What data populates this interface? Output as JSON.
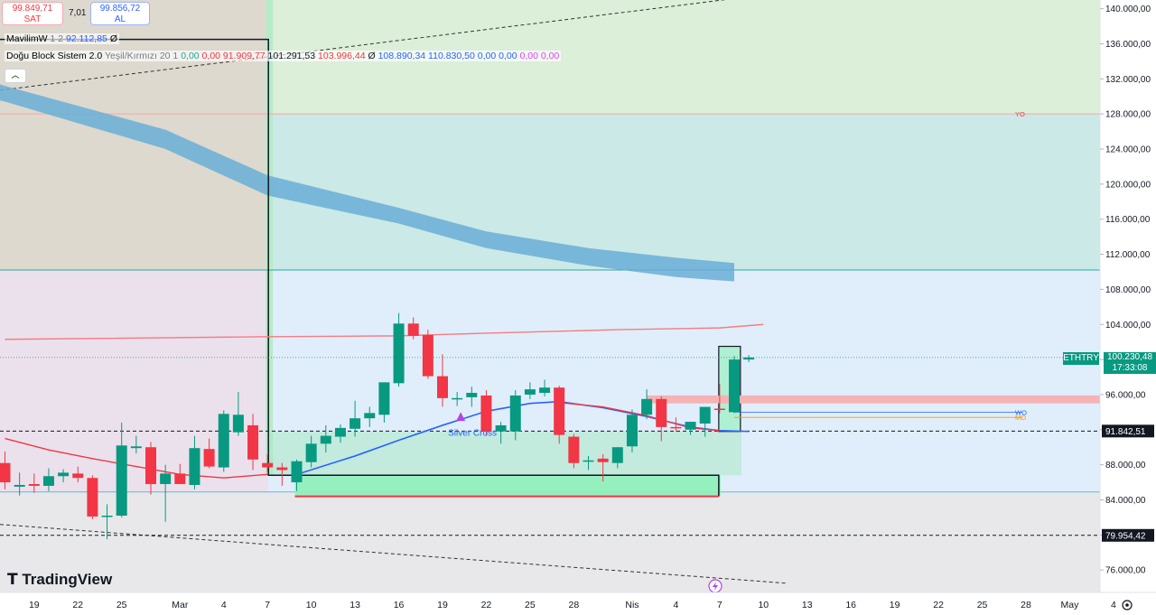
{
  "trade": {
    "sell_price": "99.849,71",
    "sell_label": "SAT",
    "spread": "7,01",
    "buy_price": "99.856,72",
    "buy_label": "AL"
  },
  "legend": {
    "indicator1_name": "MavilimW",
    "indicator1_params": "1 2",
    "indicator1_value": "92.112,85",
    "indicator1_empty": "Ø",
    "indicator2_name": "Doğu Block Sistem 2.0",
    "indicator2_params": "Yeşil/Kırmızı 20 1",
    "indicator2_values": [
      {
        "text": "0,00",
        "color": "#26a69a"
      },
      {
        "text": "0,00",
        "color": "#f23645"
      },
      {
        "text": "91.909,77",
        "color": "#f23645"
      },
      {
        "text": "101.291,53",
        "color": "#131722"
      },
      {
        "text": "103.996,44",
        "color": "#f23645"
      },
      {
        "text": "Ø",
        "color": "#131722"
      },
      {
        "text": "108.890,34",
        "color": "#2962ff"
      },
      {
        "text": "110.830,50",
        "color": "#2962ff"
      },
      {
        "text": "0,00",
        "color": "#2962ff"
      },
      {
        "text": "0,00",
        "color": "#2962ff"
      },
      {
        "text": "0,00",
        "color": "#e040fb"
      },
      {
        "text": "0,00",
        "color": "#e040fb"
      }
    ],
    "collapse_icon": "chevron-up-icon"
  },
  "symbol_tag": {
    "symbol": "ETHTRY",
    "price": "100.230,48",
    "countdown": "17:33:08",
    "color": "#26a69a"
  },
  "level_tags": [
    {
      "price": 91842.51,
      "label": "91.842,51"
    },
    {
      "price": 79954.42,
      "label": "79.954,42"
    }
  ],
  "zone_labels": [
    {
      "text": "YO",
      "price": 128000
    },
    {
      "text": "WO",
      "price": 94000
    },
    {
      "text": "MO",
      "price": 93400
    }
  ],
  "annotations": [
    {
      "text": "Silver Cross",
      "x": "20 Mar",
      "price": 91600
    }
  ],
  "branding": {
    "logo_text": "TradingView"
  },
  "colors": {
    "up": "#089981",
    "down": "#f23645",
    "ma": "#2962ff",
    "band": "#6aaed6",
    "upper_band": "#f77c80"
  },
  "chart_data": {
    "type": "candlestick",
    "symbol": "ETHTRY",
    "x_tick_labels": [
      "19",
      "22",
      "25",
      "Mar",
      "4",
      "7",
      "10",
      "13",
      "16",
      "19",
      "22",
      "25",
      "28",
      "Nis",
      "4",
      "7",
      "10",
      "13",
      "16",
      "19",
      "22",
      "25",
      "28",
      "May",
      "4"
    ],
    "y_tick_labels": [
      "76.000,00",
      "80.000,00",
      "84.000,00",
      "88.000,00",
      "92.000,00",
      "96.000,00",
      "100.000,00",
      "104.000,00",
      "108.000,00",
      "112.000,00",
      "116.000,00",
      "120.000,00",
      "124.000,00",
      "128.000,00",
      "132.000,00",
      "136.000,00",
      "140.000,00"
    ],
    "ylim": [
      74500,
      140700
    ],
    "candles": [
      {
        "date": "17 Feb",
        "o": 88200,
        "h": 89500,
        "l": 85200,
        "c": 86000
      },
      {
        "date": "18 Feb",
        "o": 85500,
        "h": 87100,
        "l": 84500,
        "c": 85700
      },
      {
        "date": "19 Feb",
        "o": 85800,
        "h": 87000,
        "l": 84800,
        "c": 85600
      },
      {
        "date": "20 Feb",
        "o": 85600,
        "h": 87600,
        "l": 85000,
        "c": 86700
      },
      {
        "date": "21 Feb",
        "o": 86700,
        "h": 87500,
        "l": 86000,
        "c": 87100
      },
      {
        "date": "22 Feb",
        "o": 87000,
        "h": 87800,
        "l": 86000,
        "c": 86500
      },
      {
        "date": "23 Feb",
        "o": 86500,
        "h": 86800,
        "l": 81800,
        "c": 82100
      },
      {
        "date": "24 Feb",
        "o": 82100,
        "h": 83500,
        "l": 79500,
        "c": 82200
      },
      {
        "date": "25 Feb",
        "o": 82200,
        "h": 92800,
        "l": 82000,
        "c": 90200
      },
      {
        "date": "26 Feb",
        "o": 89900,
        "h": 91300,
        "l": 89300,
        "c": 90100
      },
      {
        "date": "27 Feb",
        "o": 90000,
        "h": 90600,
        "l": 84600,
        "c": 85800
      },
      {
        "date": "28 Feb",
        "o": 85800,
        "h": 88000,
        "l": 81500,
        "c": 87000
      },
      {
        "date": "1 Mar",
        "o": 87000,
        "h": 88100,
        "l": 85800,
        "c": 85800
      },
      {
        "date": "2 Mar",
        "o": 85700,
        "h": 91300,
        "l": 85200,
        "c": 89900
      },
      {
        "date": "3 Mar",
        "o": 89800,
        "h": 91000,
        "l": 87600,
        "c": 87800
      },
      {
        "date": "4 Mar",
        "o": 87700,
        "h": 94200,
        "l": 87200,
        "c": 93800
      },
      {
        "date": "5 Mar",
        "o": 91700,
        "h": 96300,
        "l": 91300,
        "c": 93700
      },
      {
        "date": "6 Mar",
        "o": 92500,
        "h": 93800,
        "l": 87400,
        "c": 88600
      },
      {
        "date": "7 Mar",
        "o": 88200,
        "h": 89200,
        "l": 87100,
        "c": 87700
      },
      {
        "date": "8 Mar",
        "o": 87700,
        "h": 88200,
        "l": 85600,
        "c": 87400
      },
      {
        "date": "9 Mar",
        "o": 86000,
        "h": 88600,
        "l": 85000,
        "c": 88400
      },
      {
        "date": "10 Mar",
        "o": 88300,
        "h": 91300,
        "l": 87700,
        "c": 90400
      },
      {
        "date": "11 Mar",
        "o": 90400,
        "h": 92500,
        "l": 89400,
        "c": 91300
      },
      {
        "date": "12 Mar",
        "o": 91200,
        "h": 92600,
        "l": 90500,
        "c": 92200
      },
      {
        "date": "13 Mar",
        "o": 92100,
        "h": 95300,
        "l": 91200,
        "c": 93300
      },
      {
        "date": "14 Mar",
        "o": 93300,
        "h": 94600,
        "l": 92300,
        "c": 93900
      },
      {
        "date": "15 Mar",
        "o": 93700,
        "h": 97400,
        "l": 92800,
        "c": 97400
      },
      {
        "date": "16 Mar",
        "o": 97300,
        "h": 105300,
        "l": 96900,
        "c": 104100
      },
      {
        "date": "17 Mar",
        "o": 104100,
        "h": 104800,
        "l": 102300,
        "c": 102700
      },
      {
        "date": "18 Mar",
        "o": 102800,
        "h": 103400,
        "l": 97800,
        "c": 98100
      },
      {
        "date": "19 Mar",
        "o": 98100,
        "h": 100600,
        "l": 94600,
        "c": 95600
      },
      {
        "date": "20 Mar",
        "o": 95500,
        "h": 96300,
        "l": 94700,
        "c": 95600
      },
      {
        "date": "21 Mar",
        "o": 95700,
        "h": 96900,
        "l": 94600,
        "c": 96200
      },
      {
        "date": "22 Mar",
        "o": 95900,
        "h": 96500,
        "l": 91300,
        "c": 91800
      },
      {
        "date": "23 Mar",
        "o": 91800,
        "h": 92900,
        "l": 90400,
        "c": 92500
      },
      {
        "date": "24 Mar",
        "o": 91800,
        "h": 96500,
        "l": 90800,
        "c": 95900
      },
      {
        "date": "25 Mar",
        "o": 96000,
        "h": 97400,
        "l": 95500,
        "c": 96600
      },
      {
        "date": "26 Mar",
        "o": 96200,
        "h": 97700,
        "l": 95800,
        "c": 96800
      },
      {
        "date": "27 Mar",
        "o": 96800,
        "h": 97000,
        "l": 90400,
        "c": 91400
      },
      {
        "date": "28 Mar",
        "o": 91200,
        "h": 91500,
        "l": 87600,
        "c": 88200
      },
      {
        "date": "29 Mar",
        "o": 88500,
        "h": 89000,
        "l": 87400,
        "c": 88500
      },
      {
        "date": "30 Mar",
        "o": 88700,
        "h": 89200,
        "l": 86100,
        "c": 88300
      },
      {
        "date": "31 Mar",
        "o": 88200,
        "h": 90000,
        "l": 87600,
        "c": 90000
      },
      {
        "date": "1 Apr",
        "o": 90100,
        "h": 94300,
        "l": 89400,
        "c": 93700
      },
      {
        "date": "2 Apr",
        "o": 93700,
        "h": 96600,
        "l": 93200,
        "c": 95500
      },
      {
        "date": "3 Apr",
        "o": 95500,
        "h": 95800,
        "l": 90700,
        "c": 92300
      },
      {
        "date": "4 Apr",
        "o": 92300,
        "h": 93400,
        "l": 91800,
        "c": 92200
      },
      {
        "date": "5 Apr",
        "o": 92000,
        "h": 92900,
        "l": 91400,
        "c": 92900
      },
      {
        "date": "6 Apr",
        "o": 92700,
        "h": 94500,
        "l": 91200,
        "c": 94600
      },
      {
        "date": "7 Apr",
        "o": 94400,
        "h": 97200,
        "l": 93900,
        "c": 94300
      },
      {
        "date": "8 Apr",
        "o": 94000,
        "h": 100400,
        "l": 93900,
        "c": 100000
      },
      {
        "date": "9 Apr",
        "o": 100000,
        "h": 100500,
        "l": 99700,
        "c": 100230
      }
    ],
    "series": [
      {
        "name": "MavilimW",
        "color": "#2962ff",
        "points": [
          {
            "x": "9 Mar",
            "y": 86900
          },
          {
            "x": "13 Mar",
            "y": 89000
          },
          {
            "x": "16 Mar",
            "y": 90800
          },
          {
            "x": "19 Mar",
            "y": 92500
          },
          {
            "x": "22 Mar",
            "y": 94100
          },
          {
            "x": "25 Mar",
            "y": 95000
          },
          {
            "x": "27 Mar",
            "y": 95200
          },
          {
            "x": "30 Mar",
            "y": 94500
          },
          {
            "x": "2 Apr",
            "y": 93500
          },
          {
            "x": "5 Apr",
            "y": 92300
          },
          {
            "x": "7 Apr",
            "y": 91900
          },
          {
            "x": "9 Apr",
            "y": 91800
          }
        ]
      },
      {
        "name": "",
        "color": "#f23645",
        "points": [
          {
            "x": "17 Feb",
            "y": 91000
          },
          {
            "x": "20 Feb",
            "y": 89700
          },
          {
            "x": "23 Feb",
            "y": 88700
          },
          {
            "x": "26 Feb",
            "y": 87800
          },
          {
            "x": "1 Mar",
            "y": 86900
          },
          {
            "x": "4 Mar",
            "y": 86500
          },
          {
            "x": "7 Mar",
            "y": 86900
          }
        ]
      },
      {
        "name": "",
        "color": "#f23645",
        "points": [
          {
            "x": "27 Mar",
            "y": 95100
          },
          {
            "x": "30 Mar",
            "y": 94600
          },
          {
            "x": "2 Apr",
            "y": 93600
          },
          {
            "x": "5 Apr",
            "y": 92200
          },
          {
            "x": "7 Apr",
            "y": 91900
          }
        ]
      },
      {
        "name": "",
        "color": "#f77c80",
        "points": [
          {
            "x": "17 Feb",
            "y": 102300
          },
          {
            "x": "7 Mar",
            "y": 102600
          },
          {
            "x": "16 Mar",
            "y": 102700
          },
          {
            "x": "22 Mar",
            "y": 103000
          },
          {
            "x": "31 Mar",
            "y": 103400
          },
          {
            "x": "7 Apr",
            "y": 103600
          },
          {
            "x": "10 Apr",
            "y": 104000
          }
        ]
      }
    ],
    "band": {
      "upper": [
        131200,
        126200,
        121000,
        117300,
        114600,
        112700,
        111600,
        111000
      ],
      "lower": [
        129400,
        124000,
        118700,
        115500,
        112700,
        110700,
        109400,
        108900
      ],
      "x": [
        "17 Feb",
        "28 Feb",
        "7 Mar",
        "16 Mar",
        "22 Mar",
        "29 Mar",
        "4 Apr",
        "8 Apr"
      ]
    },
    "grid": false
  }
}
